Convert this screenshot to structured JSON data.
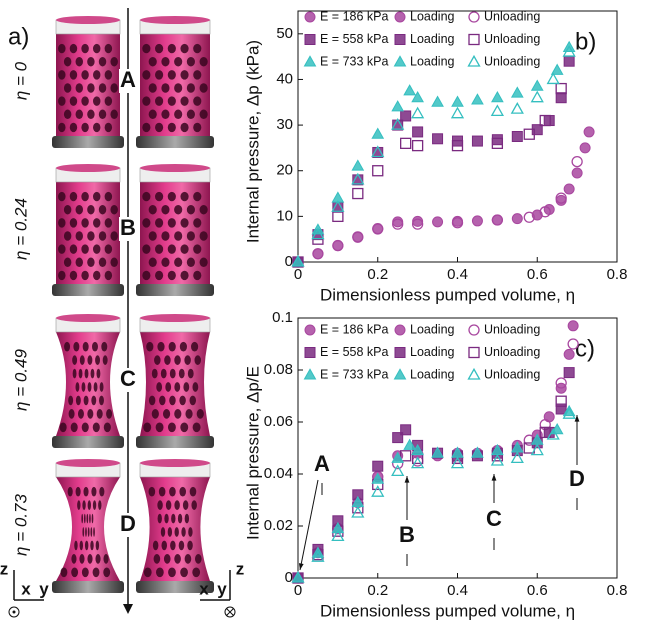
{
  "figure": {
    "panel_label": "a)",
    "states": [
      {
        "eta_label": "η = 0",
        "letter": "A"
      },
      {
        "eta_label": "η = 0.24",
        "letter": "B"
      },
      {
        "eta_label": "η = 0.49",
        "letter": "C"
      },
      {
        "eta_label": "η = 0.73",
        "letter": "D"
      }
    ],
    "axes_left": {
      "z": "z",
      "x": "x",
      "y": "y"
    },
    "axes_right": {
      "z": "z",
      "x": "x",
      "y": "y"
    }
  },
  "chart_data": [
    {
      "type": "scatter",
      "panel_label": "b)",
      "xlabel": "Dimensionless pumped volume, η",
      "ylabel": "Internal pressure, Δp (kPa)",
      "xlim": [
        0,
        0.8
      ],
      "xticks": [
        0,
        0.2,
        0.4,
        0.6,
        0.8
      ],
      "ylim": [
        0,
        55
      ],
      "yticks": [
        0,
        10,
        20,
        30,
        40,
        50
      ],
      "series": [
        {
          "group": "E = 186 kPa",
          "name": "Loading",
          "marker": "circle",
          "filled": true,
          "color": "#a8479f",
          "x": [
            0,
            0.05,
            0.1,
            0.15,
            0.2,
            0.25,
            0.3,
            0.35,
            0.4,
            0.45,
            0.5,
            0.55,
            0.6,
            0.63,
            0.66,
            0.68,
            0.7,
            0.72,
            0.73
          ],
          "values": [
            0,
            1.8,
            3.6,
            5.4,
            7.2,
            8.8,
            8.9,
            8.8,
            8.9,
            9.0,
            9.2,
            9.5,
            10.3,
            11.5,
            13.5,
            16,
            19.5,
            25,
            28.5
          ]
        },
        {
          "group": "E = 186 kPa",
          "name": "Unloading",
          "marker": "circle",
          "filled": false,
          "color": "#a8479f",
          "x": [
            0.7,
            0.66,
            0.62,
            0.58,
            0.5,
            0.4,
            0.3,
            0.25,
            0.2,
            0.15,
            0.1,
            0.05,
            0
          ],
          "values": [
            22,
            14,
            11,
            9.8,
            9.2,
            8.6,
            8.3,
            8.3,
            7.3,
            5.5,
            3.6,
            1.8,
            0
          ]
        },
        {
          "group": "E = 558 kPa",
          "name": "Loading",
          "marker": "square",
          "filled": true,
          "color": "#7a2a80",
          "x": [
            0,
            0.05,
            0.1,
            0.15,
            0.2,
            0.25,
            0.27,
            0.3,
            0.35,
            0.4,
            0.45,
            0.5,
            0.55,
            0.6,
            0.63,
            0.66,
            0.68
          ],
          "values": [
            0,
            6,
            12,
            18,
            24,
            30,
            32,
            28.5,
            27,
            26.5,
            26.5,
            26.8,
            27.5,
            29,
            31,
            36,
            44
          ]
        },
        {
          "group": "E = 558 kPa",
          "name": "Unloading",
          "marker": "square",
          "filled": false,
          "color": "#7a2a80",
          "x": [
            0.66,
            0.62,
            0.58,
            0.5,
            0.4,
            0.3,
            0.27,
            0.2,
            0.15,
            0.1,
            0.05,
            0
          ],
          "values": [
            38,
            31,
            28,
            26,
            25.5,
            25.5,
            26,
            20,
            15,
            10,
            5,
            0
          ]
        },
        {
          "group": "E = 733 kPa",
          "name": "Loading",
          "marker": "triangle",
          "filled": true,
          "color": "#35bfc0",
          "x": [
            0,
            0.05,
            0.1,
            0.15,
            0.2,
            0.25,
            0.28,
            0.3,
            0.35,
            0.4,
            0.45,
            0.5,
            0.55,
            0.6,
            0.65,
            0.68
          ],
          "values": [
            0,
            7,
            14,
            21,
            28,
            34,
            37.5,
            36,
            35,
            35,
            35.5,
            36,
            37,
            38.5,
            42,
            47
          ]
        },
        {
          "group": "E = 733 kPa",
          "name": "Unloading",
          "marker": "triangle",
          "filled": false,
          "color": "#35bfc0",
          "x": [
            0.68,
            0.64,
            0.6,
            0.55,
            0.5,
            0.4,
            0.3,
            0.25,
            0.2,
            0.15,
            0.1,
            0.05,
            0
          ],
          "values": [
            46,
            40,
            36,
            33.5,
            33,
            32.5,
            32.5,
            30,
            24,
            18,
            12,
            6,
            0
          ]
        }
      ]
    },
    {
      "type": "scatter",
      "panel_label": "c)",
      "xlabel": "Dimensionless pumped volume, η",
      "ylabel": "Internal pressure, Δp/E",
      "xlim": [
        0,
        0.8
      ],
      "xticks": [
        0,
        0.2,
        0.4,
        0.6,
        0.8
      ],
      "ylim": [
        0,
        0.1
      ],
      "yticks": [
        0,
        0.02,
        0.04,
        0.06,
        0.08,
        0.1
      ],
      "annotations": [
        "A",
        "B",
        "C",
        "D"
      ],
      "series": [
        {
          "group": "E = 186 kPa",
          "name": "Loading",
          "marker": "circle",
          "filled": true,
          "color": "#a8479f",
          "x": [
            0,
            0.05,
            0.1,
            0.15,
            0.2,
            0.25,
            0.3,
            0.35,
            0.4,
            0.45,
            0.5,
            0.55,
            0.6,
            0.63,
            0.66,
            0.68,
            0.69
          ],
          "values": [
            0,
            0.0097,
            0.019,
            0.029,
            0.039,
            0.047,
            0.048,
            0.047,
            0.048,
            0.048,
            0.049,
            0.051,
            0.055,
            0.062,
            0.073,
            0.086,
            0.097
          ]
        },
        {
          "group": "E = 186 kPa",
          "name": "Unloading",
          "marker": "circle",
          "filled": false,
          "color": "#a8479f",
          "x": [
            0.69,
            0.66,
            0.62,
            0.58,
            0.5,
            0.4,
            0.3,
            0.25,
            0.2,
            0.1,
            0
          ],
          "values": [
            0.09,
            0.075,
            0.059,
            0.053,
            0.049,
            0.046,
            0.045,
            0.044,
            0.039,
            0.019,
            0
          ]
        },
        {
          "group": "E = 558 kPa",
          "name": "Loading",
          "marker": "square",
          "filled": true,
          "color": "#7a2a80",
          "x": [
            0,
            0.05,
            0.1,
            0.15,
            0.2,
            0.25,
            0.27,
            0.3,
            0.35,
            0.4,
            0.45,
            0.5,
            0.55,
            0.6,
            0.63,
            0.66,
            0.68
          ],
          "values": [
            0,
            0.011,
            0.022,
            0.032,
            0.043,
            0.054,
            0.057,
            0.051,
            0.048,
            0.047,
            0.047,
            0.048,
            0.049,
            0.052,
            0.056,
            0.065,
            0.079
          ]
        },
        {
          "group": "E = 558 kPa",
          "name": "Unloading",
          "marker": "square",
          "filled": false,
          "color": "#7a2a80",
          "x": [
            0.66,
            0.62,
            0.58,
            0.5,
            0.4,
            0.3,
            0.27,
            0.2,
            0.15,
            0.1,
            0.05,
            0
          ],
          "values": [
            0.068,
            0.056,
            0.05,
            0.047,
            0.046,
            0.046,
            0.047,
            0.036,
            0.027,
            0.018,
            0.009,
            0
          ]
        },
        {
          "group": "E = 733 kPa",
          "name": "Loading",
          "marker": "triangle",
          "filled": true,
          "color": "#35bfc0",
          "x": [
            0,
            0.05,
            0.1,
            0.15,
            0.2,
            0.25,
            0.28,
            0.3,
            0.35,
            0.4,
            0.45,
            0.5,
            0.55,
            0.6,
            0.65,
            0.68
          ],
          "values": [
            0,
            0.0095,
            0.019,
            0.029,
            0.038,
            0.046,
            0.051,
            0.049,
            0.048,
            0.048,
            0.048,
            0.049,
            0.05,
            0.053,
            0.057,
            0.064
          ]
        },
        {
          "group": "E = 733 kPa",
          "name": "Unloading",
          "marker": "triangle",
          "filled": false,
          "color": "#35bfc0",
          "x": [
            0.68,
            0.64,
            0.6,
            0.55,
            0.5,
            0.4,
            0.3,
            0.25,
            0.2,
            0.15,
            0.1,
            0.05,
            0
          ],
          "values": [
            0.063,
            0.055,
            0.049,
            0.046,
            0.045,
            0.044,
            0.044,
            0.041,
            0.033,
            0.025,
            0.016,
            0.008,
            0
          ]
        }
      ]
    }
  ]
}
